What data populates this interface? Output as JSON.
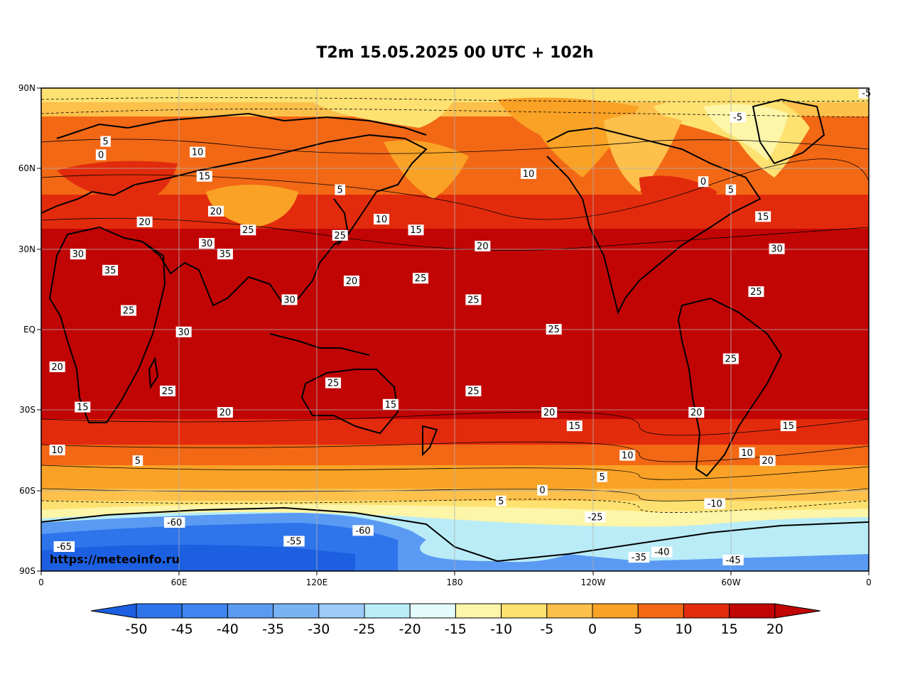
{
  "title": "T2m 15.05.2025 00 UTC + 102h",
  "watermark": "https://meteoinfo.ru",
  "lat_ticks": [
    "90N",
    "60N",
    "30N",
    "EQ",
    "30S",
    "60S",
    "90S"
  ],
  "lon_ticks": [
    "0",
    "60E",
    "120E",
    "180",
    "120W",
    "60W",
    "0"
  ],
  "colorbar": {
    "labels": [
      "-50",
      "-45",
      "-40",
      "-35",
      "-30",
      "-25",
      "-20",
      "-15",
      "-10",
      "-5",
      "0",
      "5",
      "10",
      "15",
      "20"
    ],
    "colors": [
      "#1c5fe0",
      "#2e75ec",
      "#3f86f0",
      "#5a9af2",
      "#7ab3f4",
      "#9ccbf7",
      "#b9ecf7",
      "#e3fbfa",
      "#fdf5a8",
      "#fde272",
      "#fcc04b",
      "#f9a225",
      "#f26815",
      "#e22b0c",
      "#c10505"
    ],
    "under_color": "#1c5fe0",
    "over_color": "#c10505"
  },
  "contour_labels": [
    {
      "t": "-5",
      "lon": -57,
      "lat": 79
    },
    {
      "t": "-5",
      "lon": -1,
      "lat": 88
    },
    {
      "t": "0",
      "lon": 26,
      "lat": 65
    },
    {
      "t": "5",
      "lon": 28,
      "lat": 70
    },
    {
      "t": "10",
      "lon": 68,
      "lat": 66
    },
    {
      "t": "15",
      "lon": 71,
      "lat": 57
    },
    {
      "t": "20",
      "lon": 76,
      "lat": 44
    },
    {
      "t": "25",
      "lon": 90,
      "lat": 37
    },
    {
      "t": "30",
      "lon": 72,
      "lat": 32
    },
    {
      "t": "35",
      "lon": 80,
      "lat": 28
    },
    {
      "t": "30",
      "lon": 108,
      "lat": 11
    },
    {
      "t": "25",
      "lon": 130,
      "lat": 35
    },
    {
      "t": "20",
      "lon": 135,
      "lat": 18
    },
    {
      "t": "25",
      "lon": 165,
      "lat": 19
    },
    {
      "t": "15",
      "lon": 163,
      "lat": 37
    },
    {
      "t": "10",
      "lon": 148,
      "lat": 41
    },
    {
      "t": "5",
      "lon": 130,
      "lat": 52
    },
    {
      "t": "10",
      "lon": -148,
      "lat": 58
    },
    {
      "t": "5",
      "lon": -160,
      "lat": -64
    },
    {
      "t": "20",
      "lon": -168,
      "lat": 31
    },
    {
      "t": "25",
      "lon": -172,
      "lat": 11
    },
    {
      "t": "25",
      "lon": -137,
      "lat": 0
    },
    {
      "t": "25",
      "lon": -172,
      "lat": -23
    },
    {
      "t": "20",
      "lon": -139,
      "lat": -31
    },
    {
      "t": "15",
      "lon": -128,
      "lat": -36
    },
    {
      "t": "10",
      "lon": -105,
      "lat": -47
    },
    {
      "t": "5",
      "lon": -116,
      "lat": -55
    },
    {
      "t": "0",
      "lon": -142,
      "lat": -60
    },
    {
      "t": "20",
      "lon": -75,
      "lat": -31
    },
    {
      "t": "25",
      "lon": -60,
      "lat": -11
    },
    {
      "t": "25",
      "lon": -49,
      "lat": 14
    },
    {
      "t": "30",
      "lon": -40,
      "lat": 30
    },
    {
      "t": "15",
      "lon": -46,
      "lat": 42
    },
    {
      "t": "5",
      "lon": -60,
      "lat": 52
    },
    {
      "t": "0",
      "lon": -72,
      "lat": 55
    },
    {
      "t": "20",
      "lon": -44,
      "lat": -49
    },
    {
      "t": "15",
      "lon": -35,
      "lat": -36
    },
    {
      "t": "10",
      "lon": -53,
      "lat": -46
    },
    {
      "t": "-10",
      "lon": -67,
      "lat": -65
    },
    {
      "t": "-25",
      "lon": -119,
      "lat": -70
    },
    {
      "t": "-60",
      "lon": 58,
      "lat": -72
    },
    {
      "t": "-55",
      "lon": 110,
      "lat": -79
    },
    {
      "t": "-65",
      "lon": 10,
      "lat": -81
    },
    {
      "t": "-60",
      "lon": 140,
      "lat": -75
    },
    {
      "t": "-35",
      "lon": -100,
      "lat": -85
    },
    {
      "t": "-40",
      "lon": -90,
      "lat": -83
    },
    {
      "t": "-45",
      "lon": -59,
      "lat": -86
    },
    {
      "t": "20",
      "lon": 45,
      "lat": 40
    },
    {
      "t": "30",
      "lon": 16,
      "lat": 28
    },
    {
      "t": "35",
      "lon": 30,
      "lat": 22
    },
    {
      "t": "25",
      "lon": 38,
      "lat": 7
    },
    {
      "t": "20",
      "lon": 7,
      "lat": -14
    },
    {
      "t": "15",
      "lon": 18,
      "lat": -29
    },
    {
      "t": "10",
      "lon": 7,
      "lat": -45
    },
    {
      "t": "5",
      "lon": 42,
      "lat": -49
    },
    {
      "t": "25",
      "lon": 127,
      "lat": -20
    },
    {
      "t": "15",
      "lon": 152,
      "lat": -28
    },
    {
      "t": "20",
      "lon": 80,
      "lat": -31
    },
    {
      "t": "25",
      "lon": 55,
      "lat": -23
    },
    {
      "t": "30",
      "lon": 62,
      "lat": -1
    }
  ]
}
